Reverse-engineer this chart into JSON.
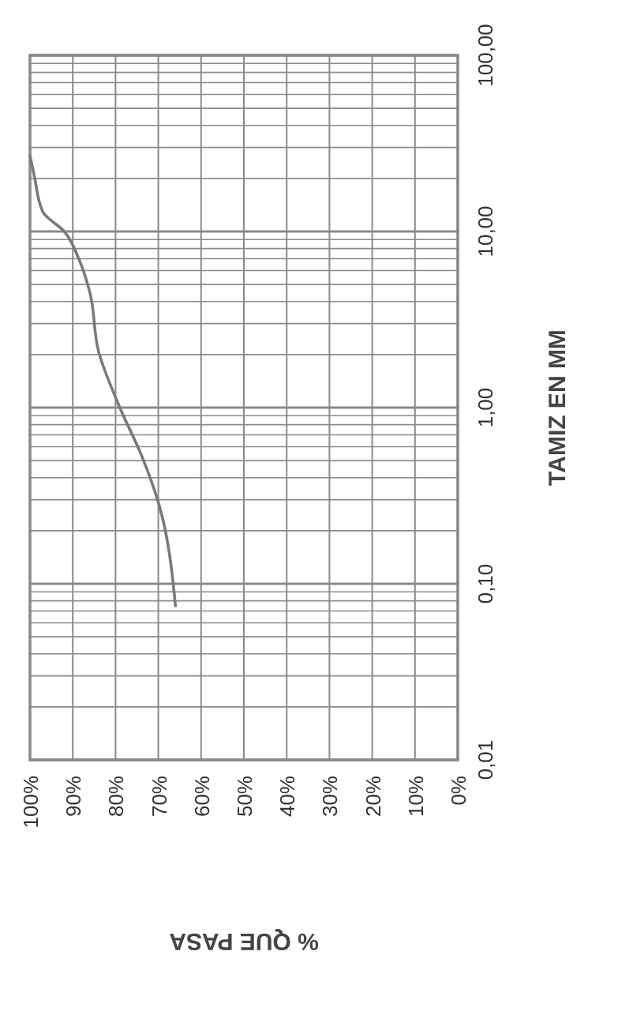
{
  "chart_data": {
    "type": "line",
    "xlabel": "% QUE PASA",
    "ylabel": "TAMIZ EN MM",
    "log": "y",
    "grid": true,
    "marker": "none",
    "line_style": "solid",
    "xlim": [
      100,
      0
    ],
    "ylim": [
      0.01,
      100
    ],
    "xticks": [
      {
        "value": 100,
        "label": "100%"
      },
      {
        "value": 90,
        "label": "90%"
      },
      {
        "value": 80,
        "label": "80%"
      },
      {
        "value": 70,
        "label": "70%"
      },
      {
        "value": 60,
        "label": "60%"
      },
      {
        "value": 50,
        "label": "50%"
      },
      {
        "value": 40,
        "label": "40%"
      },
      {
        "value": 30,
        "label": "30%"
      },
      {
        "value": 20,
        "label": "20%"
      },
      {
        "value": 10,
        "label": "10%"
      },
      {
        "value": 0,
        "label": "0%"
      }
    ],
    "yticks": [
      {
        "value": 0.01,
        "label": "0,01"
      },
      {
        "value": 0.1,
        "label": "0,10"
      },
      {
        "value": 1,
        "label": "1,00"
      },
      {
        "value": 10,
        "label": "10,00"
      },
      {
        "value": 100,
        "label": "100,00"
      }
    ],
    "series": [
      {
        "color": "#7a7a7a",
        "x": [
          66,
          70,
          74,
          79,
          84,
          86,
          88.5,
          92,
          97,
          99,
          100
        ],
        "values": [
          0.075,
          0.29,
          0.54,
          1,
          2.1,
          4.5,
          6.9,
          10,
          12.9,
          20.7,
          27
        ]
      }
    ]
  }
}
